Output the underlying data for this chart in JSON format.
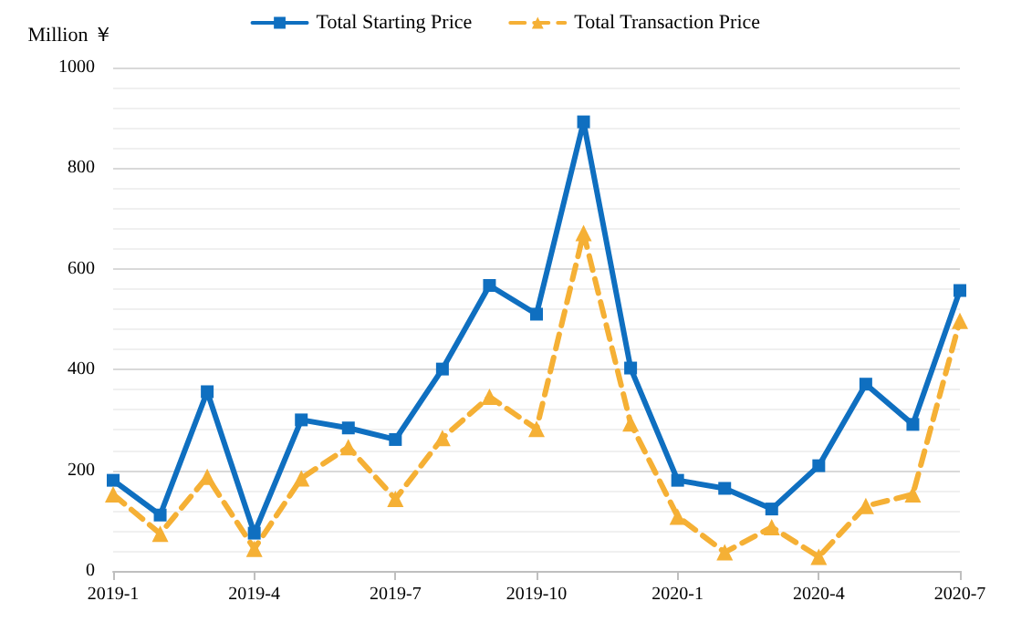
{
  "chart_data": {
    "type": "line",
    "ylabel": "Million ￥",
    "categories": [
      "2019-1",
      null,
      null,
      "2019-4",
      null,
      null,
      "2019-7",
      null,
      null,
      "2019-10",
      null,
      null,
      "2020-1",
      null,
      null,
      "2020-4",
      null,
      null,
      "2020-7"
    ],
    "series": [
      {
        "name": "Total Starting Price",
        "color": "#0f6fc0",
        "marker": "square",
        "line_style": "solid",
        "values": [
          180,
          111,
          356,
          75,
          300,
          284,
          261,
          401,
          567,
          510,
          892,
          403,
          180,
          164,
          123,
          209,
          371,
          291,
          557
        ]
      },
      {
        "name": "Total Transaction Price",
        "color": "#f5b035",
        "marker": "triangle",
        "line_style": "dashed",
        "values": [
          152,
          74,
          187,
          44,
          184,
          246,
          143,
          264,
          346,
          282,
          671,
          293,
          108,
          37,
          87,
          28,
          129,
          152,
          497
        ]
      }
    ],
    "ylim": [
      0,
      1000
    ],
    "yticks": [
      0,
      200,
      400,
      600,
      800,
      1000
    ],
    "grid": "y",
    "legend": "top"
  }
}
